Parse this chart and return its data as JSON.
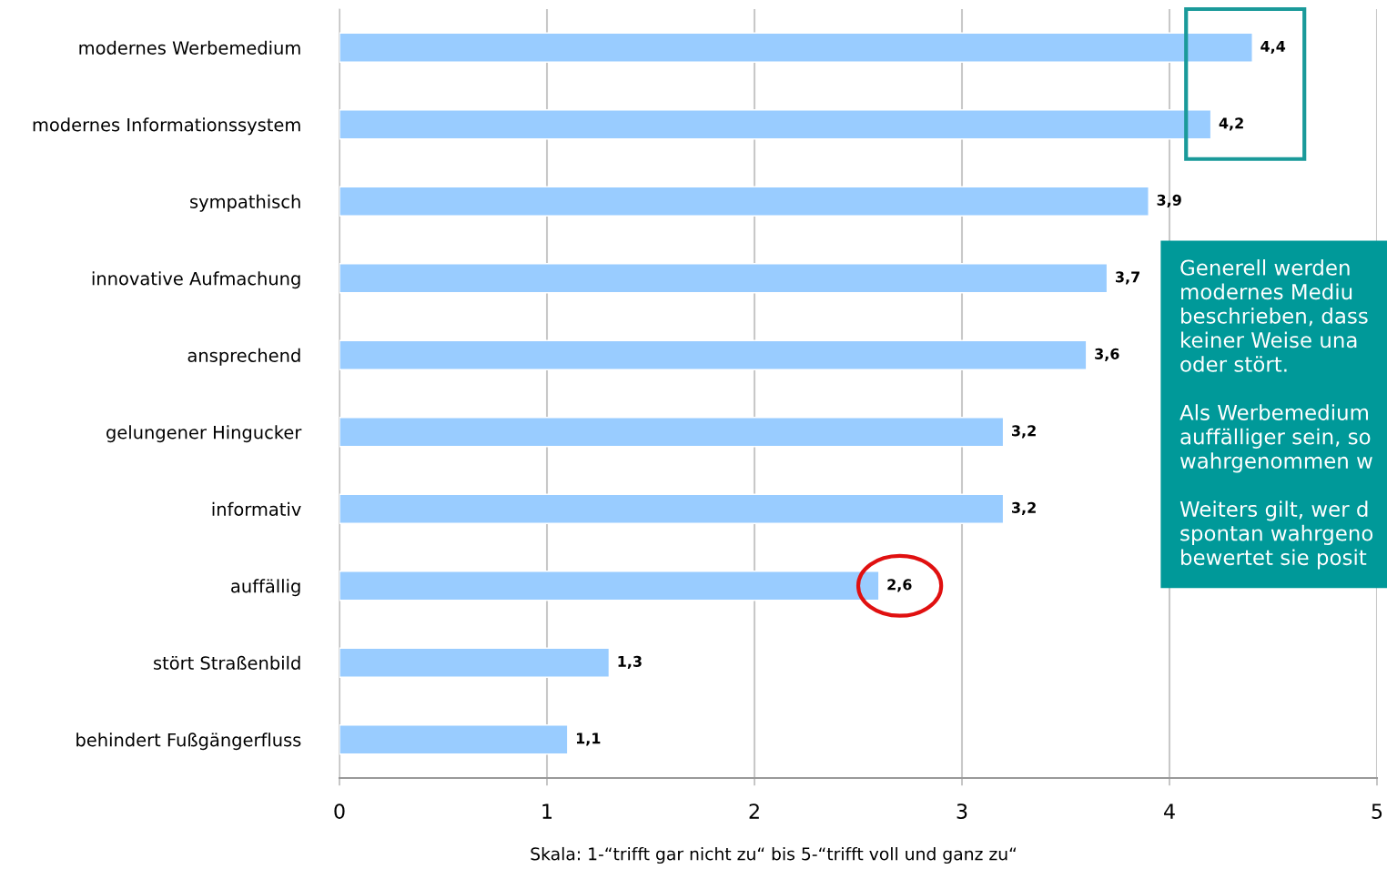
{
  "chart_data": {
    "type": "bar",
    "orientation": "horizontal",
    "categories": [
      "modernes Werbemedium",
      "modernes Informationssystem",
      "sympathisch",
      "innovative Aufmachung",
      "ansprechend",
      "gelungener Hingucker",
      "informativ",
      "auffällig",
      "stört Straßenbild",
      "behindert Fußgängerfluss"
    ],
    "values": [
      4.4,
      4.2,
      3.9,
      3.7,
      3.6,
      3.2,
      3.2,
      2.6,
      1.3,
      1.1
    ],
    "value_labels": [
      "4,4",
      "4,2",
      "3,9",
      "3,7",
      "3,6",
      "3,2",
      "3,2",
      "2,6",
      "1,3",
      "1,1"
    ],
    "color": "#99ccff",
    "xlim": [
      0,
      5
    ],
    "xticks": [
      0,
      1,
      2,
      3,
      4,
      5
    ],
    "grid": "x",
    "annotations": [
      "Skala: 1-“trifft gar nicht zu“ bis 5-“trifft voll und ganz zu“",
      "Generell werden\nmodernes Mediu\nbeschrieben, dass\nkeiner Weise una\noder stört.\n\nAls Werbemedium\nauffälliger sein, so\nwahrgenommen w\n\nWeiters gilt, wer d\nspontan wahrgeno\nbewertet sie posit"
    ]
  }
}
